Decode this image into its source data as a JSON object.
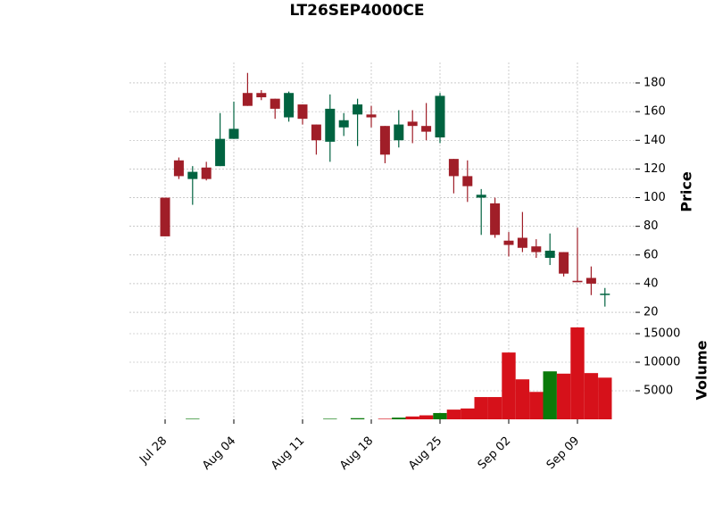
{
  "chart_data": {
    "type": "candlestick",
    "title": "LT26SEP4000CE",
    "categories": [
      "Jul 28",
      null,
      null,
      null,
      null,
      "Aug 04",
      null,
      null,
      null,
      null,
      "Aug 11",
      null,
      null,
      null,
      null,
      "Aug 18",
      null,
      null,
      null,
      null,
      "Aug 25",
      null,
      null,
      null,
      null,
      "Sep 02",
      null,
      null,
      null,
      null,
      "Sep 09",
      null,
      null
    ],
    "open": [
      100,
      126,
      113,
      121,
      122,
      141,
      173,
      173,
      169,
      156,
      165,
      151,
      139,
      149,
      158,
      158,
      150,
      140,
      153,
      150,
      142,
      127,
      115,
      100,
      96,
      70,
      72,
      66,
      58,
      62,
      42,
      44,
      33
    ],
    "high": [
      100,
      128,
      122,
      125,
      159,
      167,
      187,
      175,
      169,
      174,
      165,
      151,
      172,
      159,
      169,
      164,
      150,
      161,
      161,
      166,
      173,
      127,
      126,
      106,
      100,
      76,
      90,
      71,
      75,
      62,
      79,
      52,
      37
    ],
    "low": [
      73,
      113,
      95,
      112,
      122,
      141,
      164,
      168,
      155,
      153,
      151,
      130,
      125,
      143,
      136,
      149,
      124,
      135,
      138,
      140,
      138,
      103,
      97,
      74,
      72,
      59,
      62,
      58,
      53,
      45,
      41,
      32,
      24
    ],
    "close": [
      73,
      115,
      118,
      113,
      141,
      148,
      164,
      170,
      162,
      173,
      155,
      140,
      162,
      154,
      165,
      156,
      130,
      151,
      150,
      146,
      171,
      115,
      108,
      102,
      74,
      67,
      65,
      62,
      63,
      47,
      41,
      40,
      33
    ],
    "up_color": "#006340",
    "down_color": "#a01e28",
    "ylabel": "Price",
    "ylim": [
      18.8,
      194.3
    ],
    "yticks": [
      20,
      40,
      60,
      80,
      100,
      120,
      140,
      160,
      180
    ],
    "grid": true,
    "volume": {
      "ylabel": "Volume",
      "values": [
        0,
        0,
        100,
        0,
        0,
        0,
        0,
        0,
        0,
        0,
        0,
        0,
        100,
        0,
        200,
        0,
        100,
        300,
        500,
        700,
        1100,
        1700,
        1900,
        3900,
        3900,
        11700,
        7000,
        4800,
        8400,
        8000,
        16100,
        8100,
        7300
      ],
      "colors": [
        "#d6111a",
        "#d6111a",
        "#0a7a0a",
        "#d6111a",
        "#d6111a",
        "#d6111a",
        "#d6111a",
        "#d6111a",
        "#d6111a",
        "#d6111a",
        "#d6111a",
        "#d6111a",
        "#0a7a0a",
        "#d6111a",
        "#0a7a0a",
        "#d6111a",
        "#d6111a",
        "#0a7a0a",
        "#d6111a",
        "#d6111a",
        "#0a7a0a",
        "#d6111a",
        "#d6111a",
        "#d6111a",
        "#d6111a",
        "#d6111a",
        "#d6111a",
        "#d6111a",
        "#0a7a0a",
        "#d6111a",
        "#d6111a",
        "#d6111a",
        "#d6111a"
      ],
      "ylim": [
        0,
        17500
      ],
      "yticks": [
        5000,
        10000,
        15000
      ]
    }
  }
}
